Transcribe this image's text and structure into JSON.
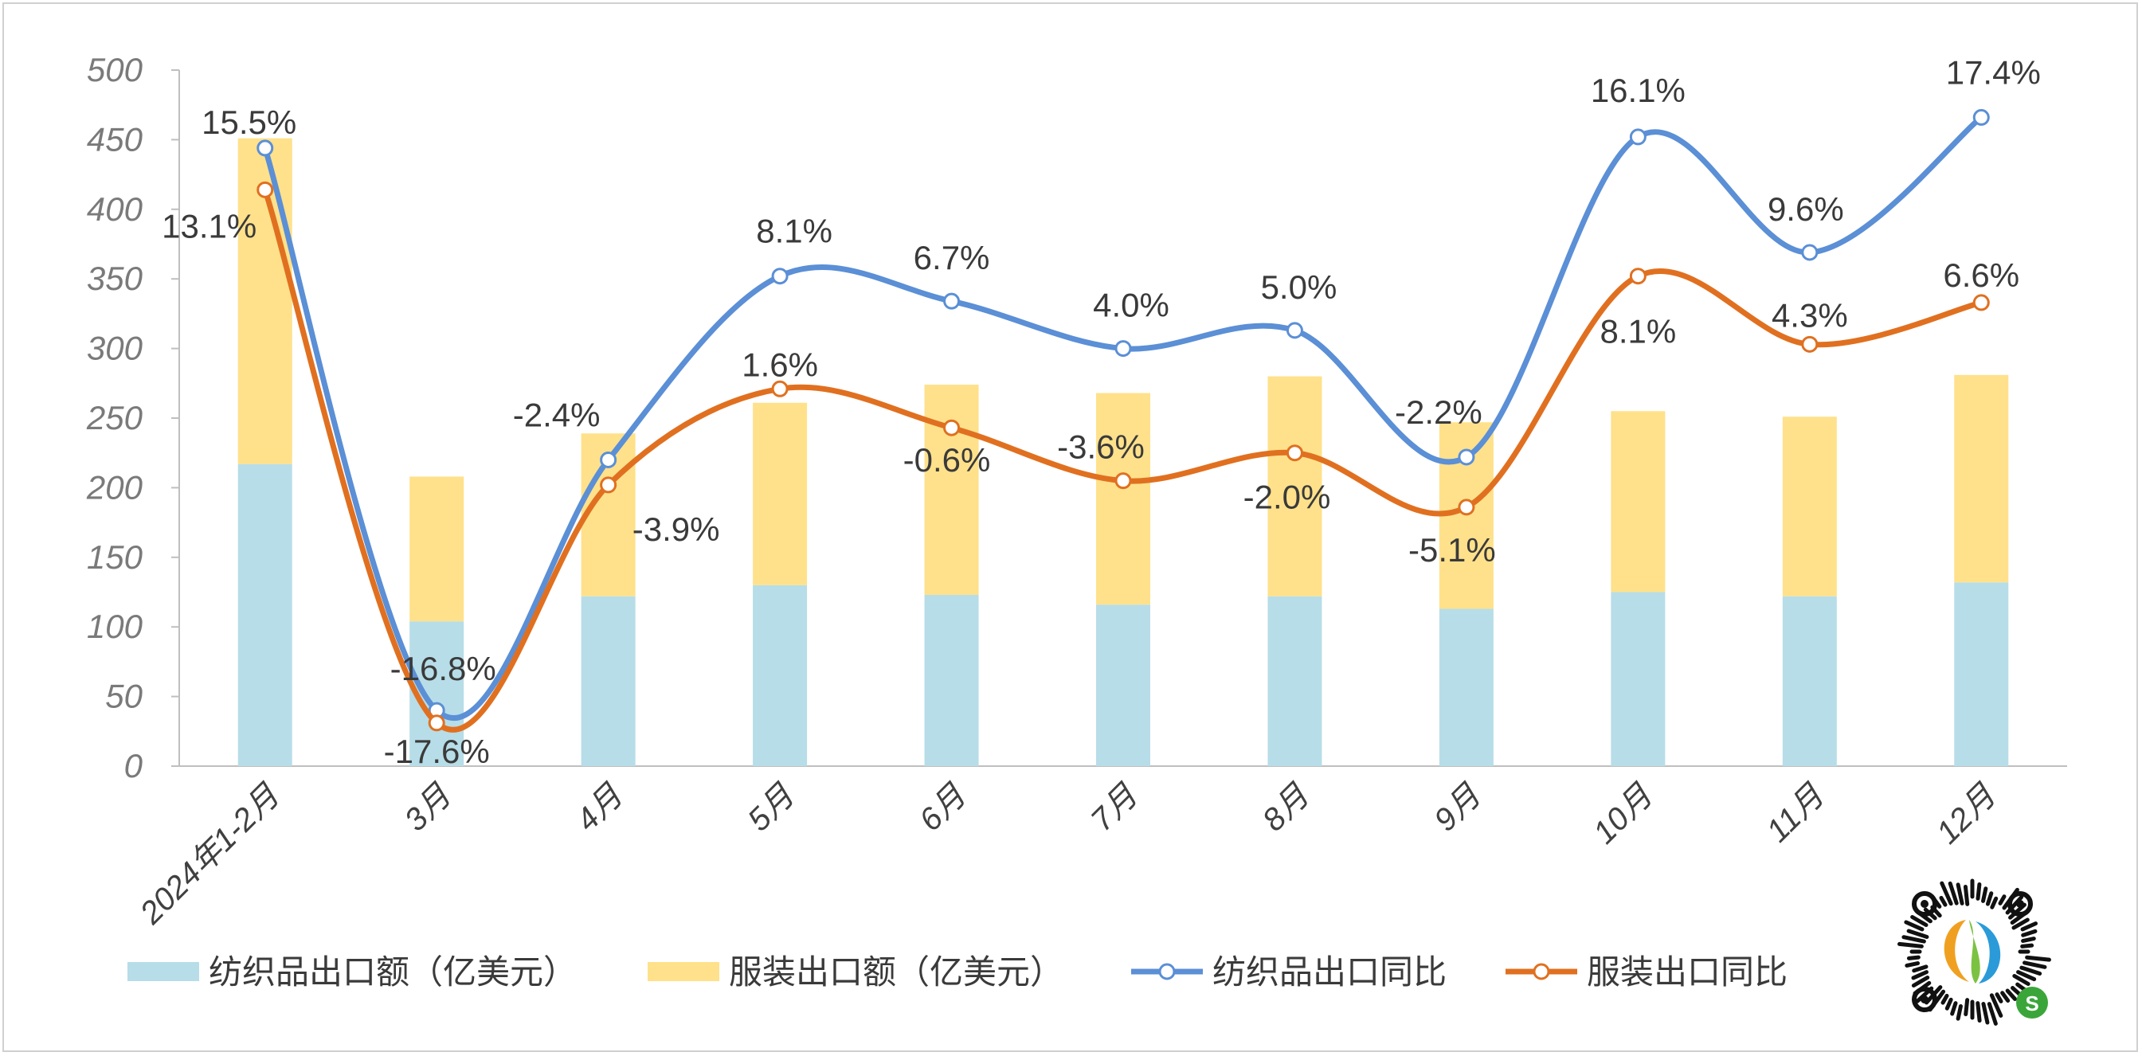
{
  "chart_data": {
    "type": "bar",
    "stacked": true,
    "categories": [
      "2024年1-2月",
      "3月",
      "4月",
      "5月",
      "6月",
      "7月",
      "8月",
      "9月",
      "10月",
      "11月",
      "12月"
    ],
    "ylim": [
      0,
      500
    ],
    "yticks": [
      0,
      50,
      100,
      150,
      200,
      250,
      300,
      350,
      400,
      450,
      500
    ],
    "grid": false,
    "legend_position": "bottom",
    "bar_series": [
      {
        "name": "纺织品出口额（亿美元）",
        "color": "#b7dde8",
        "values": [
          217,
          104,
          122,
          130,
          123,
          116,
          122,
          113,
          125,
          122,
          132
        ]
      },
      {
        "name": "服装出口额（亿美元）",
        "color": "#ffe18b",
        "values": [
          234,
          104,
          117,
          131,
          151,
          152,
          158,
          134,
          130,
          129,
          149
        ]
      }
    ],
    "line_series": [
      {
        "name": "纺织品出口同比",
        "color": "#5b8fd6",
        "values": [
          15.5,
          -16.8,
          -2.4,
          8.1,
          6.7,
          4.0,
          5.0,
          -2.2,
          16.1,
          9.6,
          17.4
        ],
        "labels": [
          "15.5%",
          "-16.8%",
          "-2.4%",
          "8.1%",
          "6.7%",
          "4.0%",
          "5.0%",
          "-2.2%",
          "16.1%",
          "9.6%",
          "17.4%"
        ],
        "plot_positions": [
          444,
          40,
          220,
          352,
          334,
          300,
          313,
          222,
          452,
          369,
          466
        ]
      },
      {
        "name": "服装出口同比",
        "color": "#e07020",
        "values": [
          13.1,
          -17.6,
          -3.9,
          1.6,
          -0.6,
          -3.6,
          -2.0,
          -5.1,
          8.1,
          4.3,
          6.6
        ],
        "labels": [
          "13.1%",
          "-17.6%",
          "-3.9%",
          "1.6%",
          "-0.6%",
          "-3.6%",
          "-2.0%",
          "-5.1%",
          "8.1%",
          "4.3%",
          "6.6%"
        ],
        "plot_positions": [
          414,
          31,
          202,
          271,
          243,
          205,
          225,
          186,
          352,
          303,
          333
        ]
      }
    ]
  }
}
